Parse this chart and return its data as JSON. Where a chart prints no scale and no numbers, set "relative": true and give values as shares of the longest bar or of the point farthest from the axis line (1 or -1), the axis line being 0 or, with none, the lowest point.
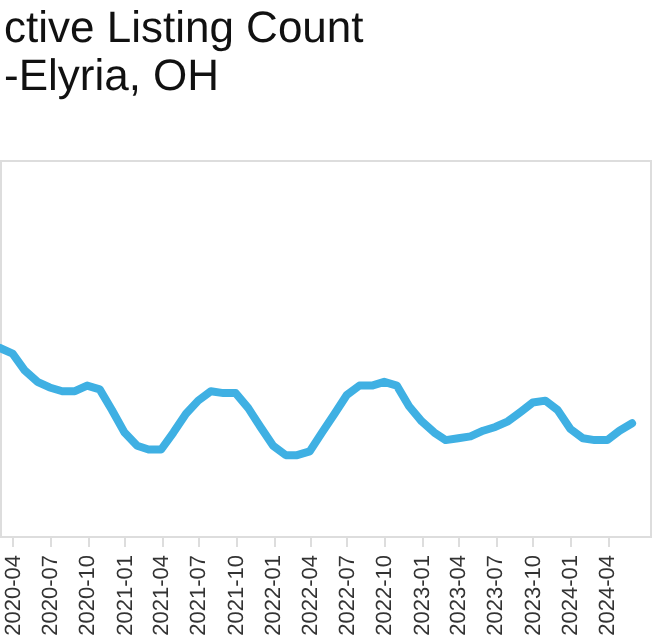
{
  "chart_data": {
    "type": "line",
    "title": "ctive Listing Count\n-Elyria, OH",
    "relative": true,
    "x": [
      "2020-03",
      "2020-04",
      "2020-05",
      "2020-06",
      "2020-07",
      "2020-08",
      "2020-09",
      "2020-10",
      "2020-11",
      "2020-12",
      "2021-01",
      "2021-02",
      "2021-03",
      "2021-04",
      "2021-05",
      "2021-06",
      "2021-07",
      "2021-08",
      "2021-09",
      "2021-10",
      "2021-11",
      "2021-12",
      "2022-01",
      "2022-02",
      "2022-03",
      "2022-04",
      "2022-05",
      "2022-06",
      "2022-07",
      "2022-08",
      "2022-09",
      "2022-10",
      "2022-11",
      "2022-12",
      "2023-01",
      "2023-02",
      "2023-03",
      "2023-04",
      "2023-05",
      "2023-06",
      "2023-07",
      "2023-08",
      "2023-09",
      "2023-10",
      "2023-11",
      "2023-12",
      "2024-01",
      "2024-02",
      "2024-03",
      "2024-04",
      "2024-05",
      "2024-06"
    ],
    "series": [
      {
        "color": "#3fb0e3",
        "values": [
          1.0,
          0.97,
          0.88,
          0.82,
          0.79,
          0.77,
          0.77,
          0.8,
          0.78,
          0.67,
          0.55,
          0.48,
          0.46,
          0.46,
          0.55,
          0.65,
          0.72,
          0.77,
          0.76,
          0.76,
          0.68,
          0.58,
          0.48,
          0.43,
          0.43,
          0.45,
          0.55,
          0.65,
          0.75,
          0.8,
          0.8,
          0.82,
          0.8,
          0.69,
          0.61,
          0.55,
          0.51,
          0.52,
          0.53,
          0.56,
          0.58,
          0.61,
          0.66,
          0.71,
          0.72,
          0.67,
          0.57,
          0.52,
          0.51,
          0.51,
          0.56,
          0.6
        ]
      }
    ],
    "xlim": [
      "2020-03",
      "2024-07-15"
    ],
    "xticks": [
      "2020-04",
      "2020-07",
      "2020-10",
      "2021-01",
      "2021-04",
      "2021-07",
      "2021-10",
      "2022-01",
      "2022-04",
      "2022-07",
      "2022-10",
      "2023-01",
      "2023-04",
      "2023-07",
      "2023-10",
      "2024-01",
      "2024-04"
    ],
    "grid": false,
    "legend": false,
    "tick_labels": "x",
    "marker": "none",
    "line_style": "solid"
  }
}
